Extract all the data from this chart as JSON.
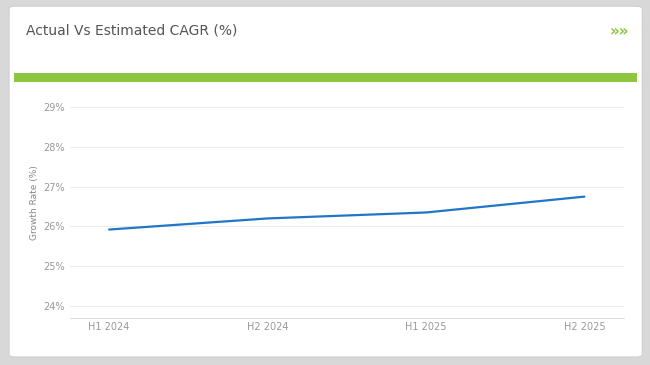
{
  "title": "Actual Vs Estimated CAGR (%)",
  "title_fontsize": 10,
  "title_color": "#555555",
  "x_labels": [
    "H1 2024",
    "H2 2024",
    "H1 2025",
    "H2 2025"
  ],
  "x_values": [
    0,
    1,
    2,
    3
  ],
  "y_values": [
    25.92,
    26.2,
    26.35,
    26.75
  ],
  "line_color": "#2176c7",
  "line_width": 1.6,
  "ylabel": "Growth Rate (%)",
  "ylabel_fontsize": 6.5,
  "ylabel_color": "#888888",
  "ylim": [
    23.7,
    29.5
  ],
  "yticks": [
    24,
    25,
    26,
    27,
    28,
    29
  ],
  "ytick_labels": [
    "24%",
    "25%",
    "26%",
    "27%",
    "28%",
    "29%"
  ],
  "tick_fontsize": 7,
  "tick_color": "#999999",
  "outer_bg": "#d8d8d8",
  "card_bg": "#ffffff",
  "card_edge": "#cccccc",
  "green_bar_color": "#8dc63f",
  "chevron_color": "#8dc63f",
  "grid_color": "#e5e5e5"
}
